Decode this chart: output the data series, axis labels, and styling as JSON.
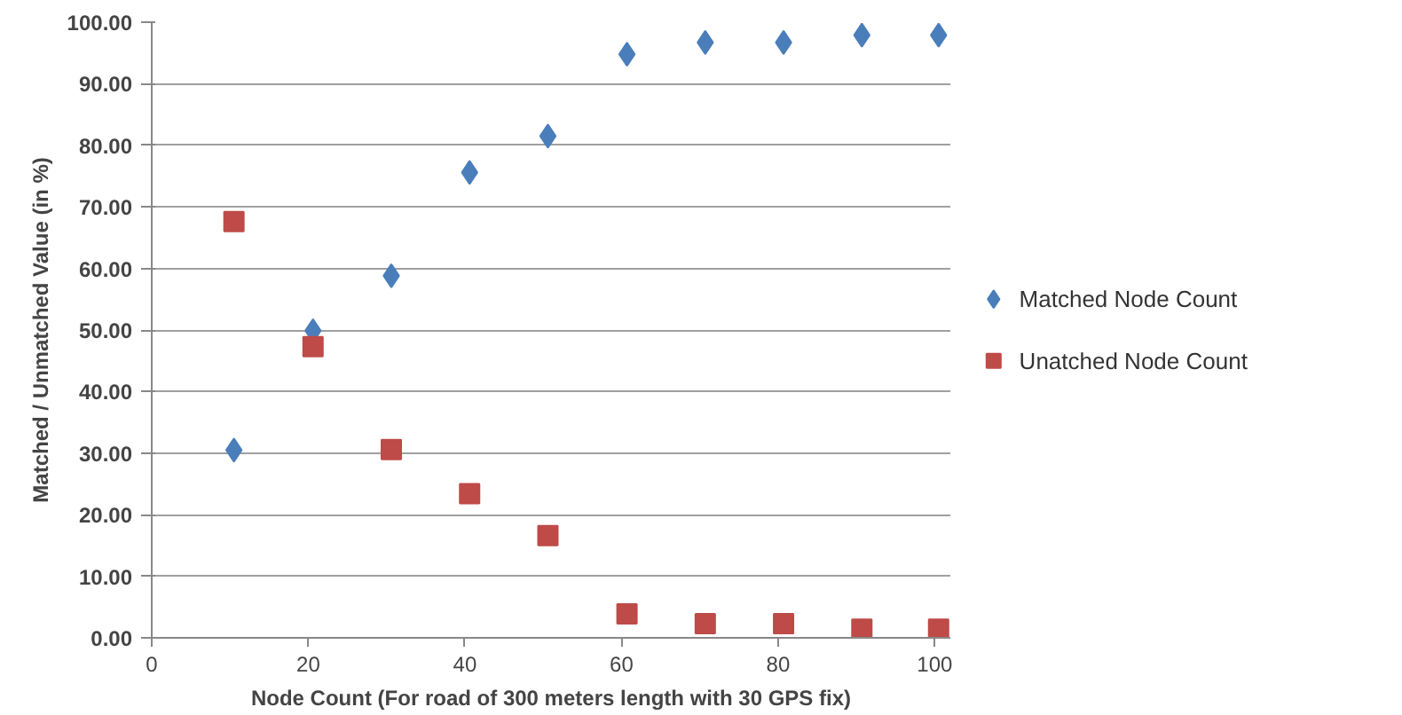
{
  "chart_data": {
    "type": "scatter",
    "xlabel": "Node Count (For road of 300 meters length with 30 GPS fix)",
    "ylabel": "Matched / Unmatched Value (in %)",
    "xlim": [
      0,
      102
    ],
    "xticks": [
      0,
      20,
      40,
      60,
      80,
      100
    ],
    "ylim": [
      0,
      100
    ],
    "yticks": [
      {
        "value": 0,
        "label": "0.00"
      },
      {
        "value": 10,
        "label": "10.00"
      },
      {
        "value": 20,
        "label": "20.00"
      },
      {
        "value": 30,
        "label": "30.00"
      },
      {
        "value": 40,
        "label": "40.00"
      },
      {
        "value": 50,
        "label": "50.00"
      },
      {
        "value": 60,
        "label": "60.00"
      },
      {
        "value": 70,
        "label": "70.00"
      },
      {
        "value": 80,
        "label": "80.00"
      },
      {
        "value": 90,
        "label": "90.00"
      },
      {
        "value": 100,
        "label": "100.00"
      }
    ],
    "grid": "y",
    "legend": "right",
    "x": [
      10.5,
      20.6,
      30.6,
      40.6,
      50.6,
      60.7,
      70.7,
      80.7,
      90.7,
      100.5
    ],
    "series": [
      {
        "name": "Matched Node Count",
        "color": "#4a7ebb",
        "marker": "diamond",
        "values": [
          30.5,
          49.9,
          58.8,
          75.6,
          81.5,
          94.8,
          96.7,
          96.7,
          97.9,
          97.9
        ]
      },
      {
        "name": "Unatched Node Count",
        "color": "#be4b48",
        "marker": "square",
        "values": [
          67.6,
          47.3,
          30.6,
          23.4,
          16.6,
          3.9,
          2.3,
          2.3,
          1.4,
          1.4
        ]
      }
    ]
  }
}
